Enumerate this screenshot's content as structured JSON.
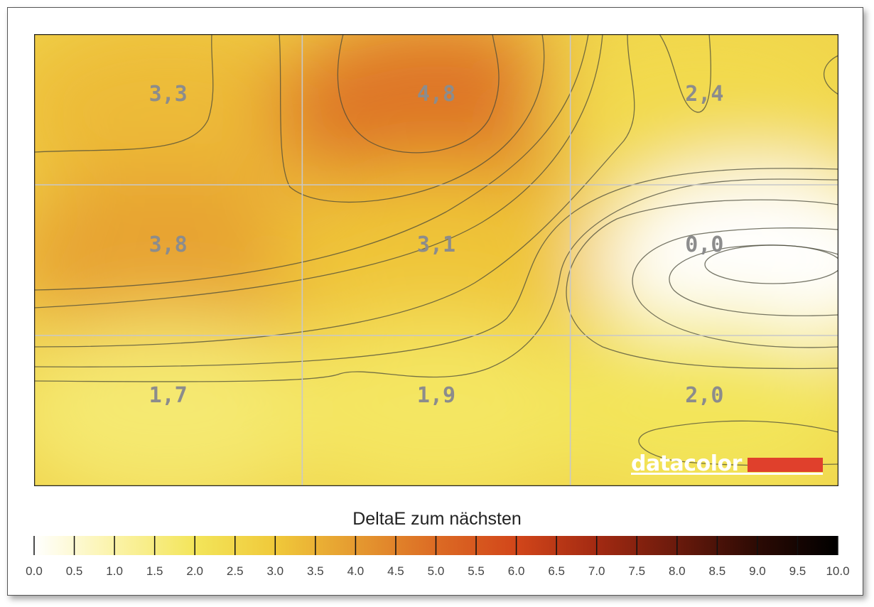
{
  "chart_data": {
    "type": "heatmap",
    "rows": 3,
    "cols": 3,
    "cell_labels": [
      [
        "3,3",
        "4,8",
        "2,4"
      ],
      [
        "3,8",
        "3,1",
        "0,0"
      ],
      [
        "1,7",
        "1,9",
        "2,0"
      ]
    ],
    "values": [
      [
        3.3,
        4.8,
        2.4
      ],
      [
        3.8,
        3.1,
        0.0
      ],
      [
        1.7,
        1.9,
        2.0
      ]
    ],
    "grid": true,
    "contours": true,
    "colorbar": {
      "title": "DeltaE zum nächsten",
      "min": 0.0,
      "max": 10.0,
      "ticks": [
        "0.0",
        "0.5",
        "1.0",
        "1.5",
        "2.0",
        "2.5",
        "3.0",
        "3.5",
        "4.0",
        "4.5",
        "5.0",
        "5.5",
        "6.0",
        "6.5",
        "7.0",
        "7.5",
        "8.0",
        "8.5",
        "9.0",
        "9.5",
        "10.0"
      ],
      "colors": [
        "#ffffff",
        "#fbf3a8",
        "#f3e55a",
        "#f0c93a",
        "#e59a30",
        "#dc6b24",
        "#d2461a",
        "#a32a12",
        "#6a1a0c",
        "#2c0a04",
        "#000000"
      ]
    },
    "logo": "datacolor",
    "brand_color": "#e0402c"
  }
}
